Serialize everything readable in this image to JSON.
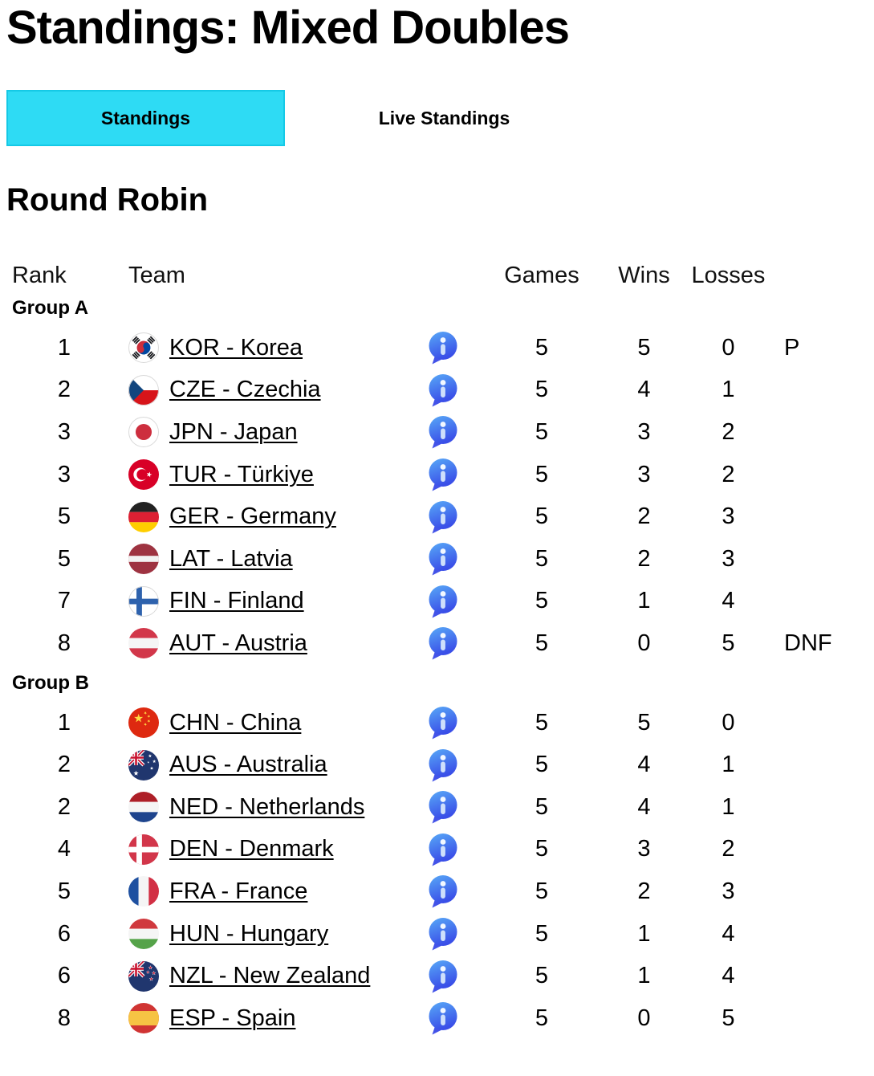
{
  "page_title": "Standings: Mixed Doubles",
  "tabs": [
    {
      "label": "Standings",
      "active": true
    },
    {
      "label": "Live Standings",
      "active": false
    }
  ],
  "section_title": "Round Robin",
  "table": {
    "headers": {
      "rank": "Rank",
      "team": "Team",
      "games": "Games",
      "wins": "Wins",
      "losses": "Losses"
    },
    "groups": [
      {
        "label": "Group A",
        "rows": [
          {
            "rank": "1",
            "country_code": "KOR",
            "team": "KOR - Korea",
            "games": "5",
            "wins": "5",
            "losses": "0",
            "status": "P"
          },
          {
            "rank": "2",
            "country_code": "CZE",
            "team": "CZE - Czechia",
            "games": "5",
            "wins": "4",
            "losses": "1",
            "status": ""
          },
          {
            "rank": "3",
            "country_code": "JPN",
            "team": "JPN - Japan",
            "games": "5",
            "wins": "3",
            "losses": "2",
            "status": ""
          },
          {
            "rank": "3",
            "country_code": "TUR",
            "team": "TUR - Türkiye",
            "games": "5",
            "wins": "3",
            "losses": "2",
            "status": ""
          },
          {
            "rank": "5",
            "country_code": "GER",
            "team": "GER - Germany",
            "games": "5",
            "wins": "2",
            "losses": "3",
            "status": ""
          },
          {
            "rank": "5",
            "country_code": "LAT",
            "team": "LAT - Latvia",
            "games": "5",
            "wins": "2",
            "losses": "3",
            "status": ""
          },
          {
            "rank": "7",
            "country_code": "FIN",
            "team": "FIN - Finland",
            "games": "5",
            "wins": "1",
            "losses": "4",
            "status": ""
          },
          {
            "rank": "8",
            "country_code": "AUT",
            "team": "AUT - Austria",
            "games": "5",
            "wins": "0",
            "losses": "5",
            "status": "DNF"
          }
        ]
      },
      {
        "label": "Group B",
        "rows": [
          {
            "rank": "1",
            "country_code": "CHN",
            "team": "CHN - China",
            "games": "5",
            "wins": "5",
            "losses": "0",
            "status": ""
          },
          {
            "rank": "2",
            "country_code": "AUS",
            "team": "AUS - Australia",
            "games": "5",
            "wins": "4",
            "losses": "1",
            "status": ""
          },
          {
            "rank": "2",
            "country_code": "NED",
            "team": "NED - Netherlands",
            "games": "5",
            "wins": "4",
            "losses": "1",
            "status": ""
          },
          {
            "rank": "4",
            "country_code": "DEN",
            "team": "DEN - Denmark",
            "games": "5",
            "wins": "3",
            "losses": "2",
            "status": ""
          },
          {
            "rank": "5",
            "country_code": "FRA",
            "team": "FRA - France",
            "games": "5",
            "wins": "2",
            "losses": "3",
            "status": ""
          },
          {
            "rank": "6",
            "country_code": "HUN",
            "team": "HUN - Hungary",
            "games": "5",
            "wins": "1",
            "losses": "4",
            "status": ""
          },
          {
            "rank": "6",
            "country_code": "NZL",
            "team": "NZL - New Zealand",
            "games": "5",
            "wins": "1",
            "losses": "4",
            "status": ""
          },
          {
            "rank": "8",
            "country_code": "ESP",
            "team": "ESP - Spain",
            "games": "5",
            "wins": "0",
            "losses": "5",
            "status": ""
          }
        ]
      }
    ]
  },
  "icons": {
    "info": "info-icon"
  },
  "colors": {
    "tab_active_bg": "#2edbf4",
    "tab_active_border": "#15c9e6",
    "info_icon_gradient_top": "#58aaf7",
    "info_icon_gradient_bottom": "#3a4fe8",
    "text": "#000000"
  }
}
